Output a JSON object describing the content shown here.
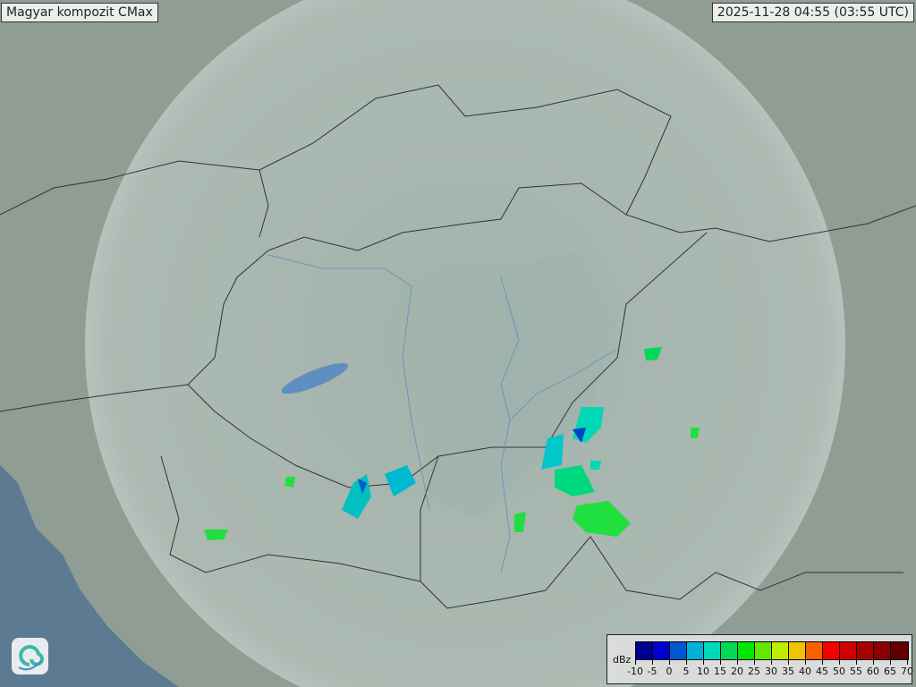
{
  "title": "Magyar kompozit  CMax",
  "timestamp": "2025-11-28 04:55 (03:55 UTC)",
  "logo_icon": "swirl-logo-icon",
  "legend": {
    "unit": "dBz",
    "ticks": [
      "-10",
      "-5",
      "0",
      "5",
      "10",
      "15",
      "20",
      "25",
      "30",
      "35",
      "40",
      "45",
      "50",
      "55",
      "60",
      "65",
      "70"
    ],
    "colors": [
      "#00008c",
      "#0000d0",
      "#0058d0",
      "#00b0d8",
      "#00d8b8",
      "#00d858",
      "#00e800",
      "#60e800",
      "#c0ec00",
      "#f0c400",
      "#f86000",
      "#f80000",
      "#d00000",
      "#a80000",
      "#880000",
      "#600000"
    ]
  },
  "colors": {
    "sea": "#5c7a92",
    "land": "#8f9d95",
    "radar_coverage": "#c6d0cb",
    "borders": "#333333",
    "rivers": "#5e8fc0"
  }
}
